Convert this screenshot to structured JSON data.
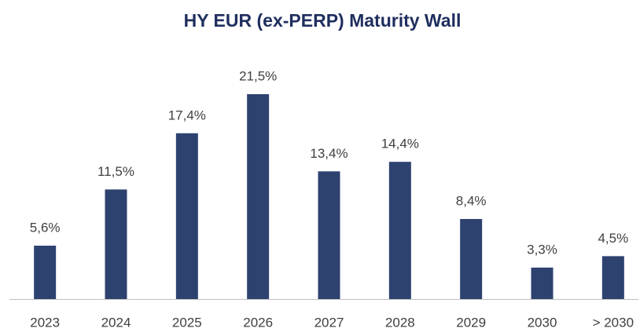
{
  "chart_data": {
    "type": "bar",
    "title": "HY EUR (ex-PERP) Maturity Wall",
    "categories": [
      "2023",
      "2024",
      "2025",
      "2026",
      "2027",
      "2028",
      "2029",
      "2030",
      "> 2030"
    ],
    "values": [
      5.6,
      11.5,
      17.4,
      21.5,
      13.4,
      14.4,
      8.4,
      3.3,
      4.5
    ],
    "value_labels": [
      "5,6%",
      "11,5%",
      "17,4%",
      "21,5%",
      "13,4%",
      "14,4%",
      "8,4%",
      "3,3%",
      "4,5%"
    ],
    "color": "#2e4270"
  }
}
